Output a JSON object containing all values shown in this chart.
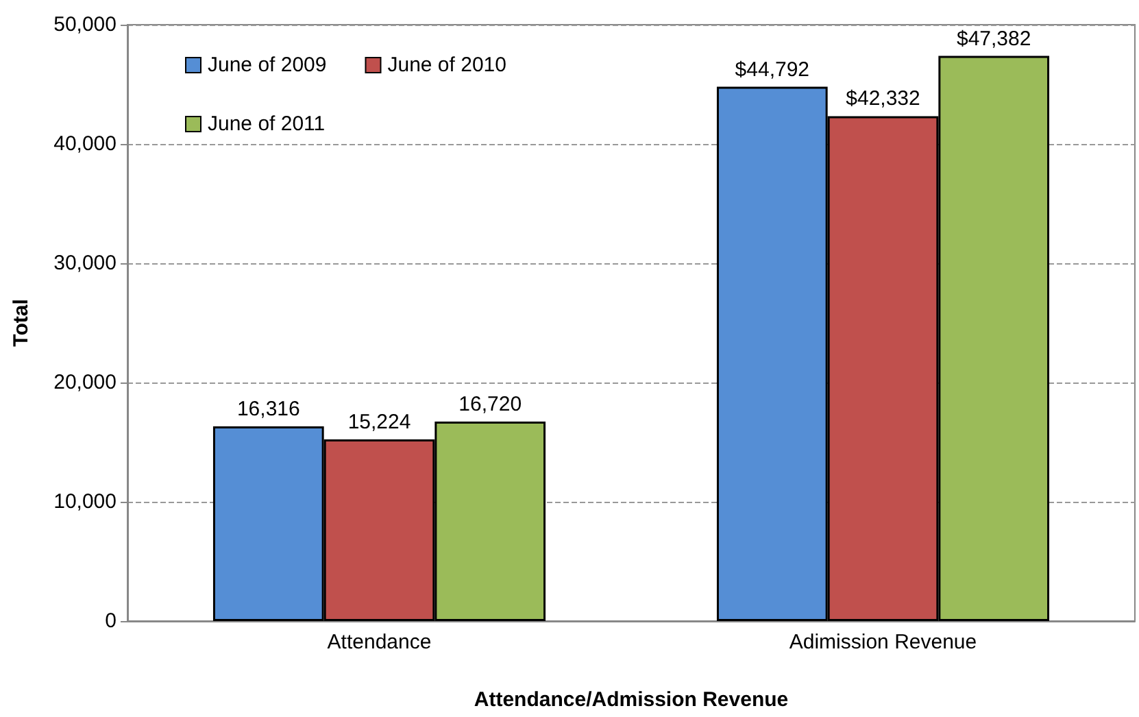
{
  "chart_data": {
    "type": "bar",
    "xlabel": "Attendance/Admission Revenue",
    "ylabel": "Total",
    "categories": [
      "Attendance",
      "Adimission Revenue"
    ],
    "series": [
      {
        "name": "June of 2009",
        "color": "#558ed5",
        "values": [
          16316,
          44792
        ],
        "value_labels": [
          "16,316",
          "$44,792"
        ]
      },
      {
        "name": "June of 2010",
        "color": "#c0504d",
        "values": [
          15224,
          42332
        ],
        "value_labels": [
          "15,224",
          "$42,332"
        ]
      },
      {
        "name": "June of 2011",
        "color": "#9bbb59",
        "values": [
          16720,
          47382
        ],
        "value_labels": [
          "16,720",
          "$47,382"
        ]
      }
    ],
    "ylim": [
      0,
      50000
    ],
    "yticks": [
      {
        "value": 0,
        "label": "0"
      },
      {
        "value": 10000,
        "label": "10,000"
      },
      {
        "value": 20000,
        "label": "20,000"
      },
      {
        "value": 30000,
        "label": "30,000"
      },
      {
        "value": 40000,
        "label": "40,000"
      },
      {
        "value": 50000,
        "label": "50,000"
      }
    ],
    "grid": "y",
    "legend": "top left"
  }
}
